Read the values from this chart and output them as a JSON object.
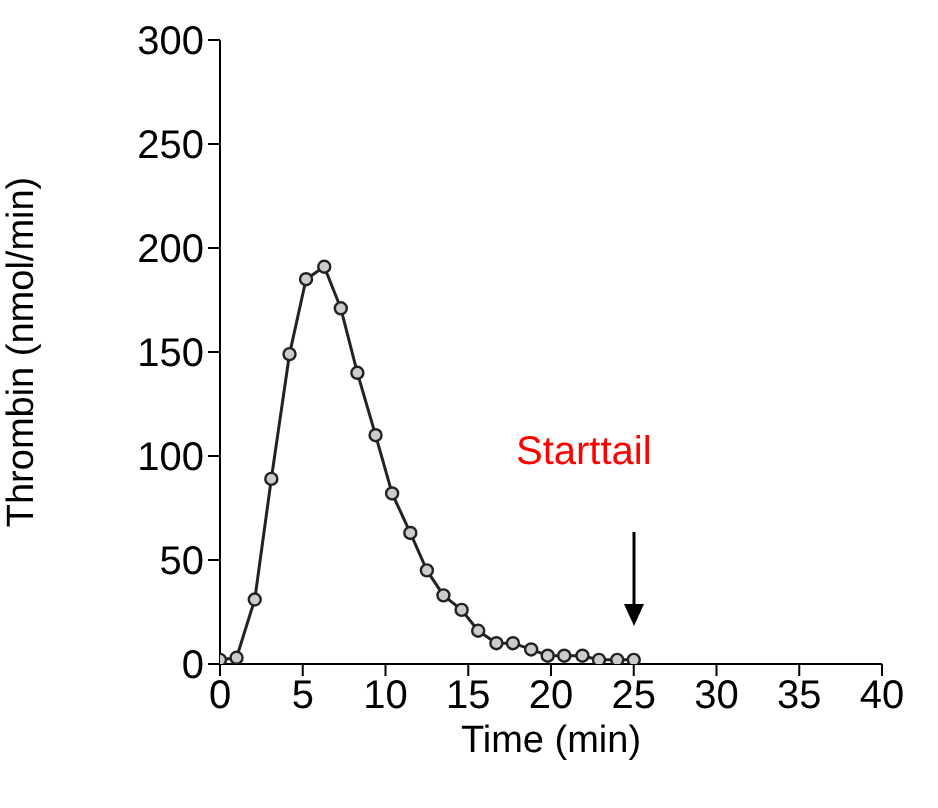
{
  "chart_data": {
    "type": "line",
    "xlabel": "Time (min)",
    "ylabel": "Thrombin (nmol/min)",
    "x": [
      0,
      1,
      2.1,
      3.1,
      4.2,
      5.2,
      6.3,
      7.3,
      8.3,
      9.4,
      10.4,
      11.5,
      12.5,
      13.5,
      14.6,
      15.6,
      16.7,
      17.7,
      18.8,
      19.8,
      20.8,
      21.9,
      22.9,
      24,
      25
    ],
    "series": [
      {
        "color": "#222222",
        "values": [
          2,
          3,
          31,
          89,
          149,
          185,
          191,
          171,
          140,
          110,
          82,
          63,
          45,
          33,
          26,
          16,
          10,
          10,
          7,
          4,
          4,
          4,
          2,
          2,
          2
        ]
      }
    ],
    "xlim": [
      0,
      40
    ],
    "xticks": [
      0,
      5,
      10,
      15,
      20,
      25,
      30,
      35,
      40
    ],
    "ylim": [
      0,
      300
    ],
    "yticks": [
      0,
      50,
      100,
      150,
      200,
      250,
      300
    ],
    "marker": "circle",
    "grid": false,
    "legend": false,
    "annotations": [
      "Starttail"
    ]
  }
}
